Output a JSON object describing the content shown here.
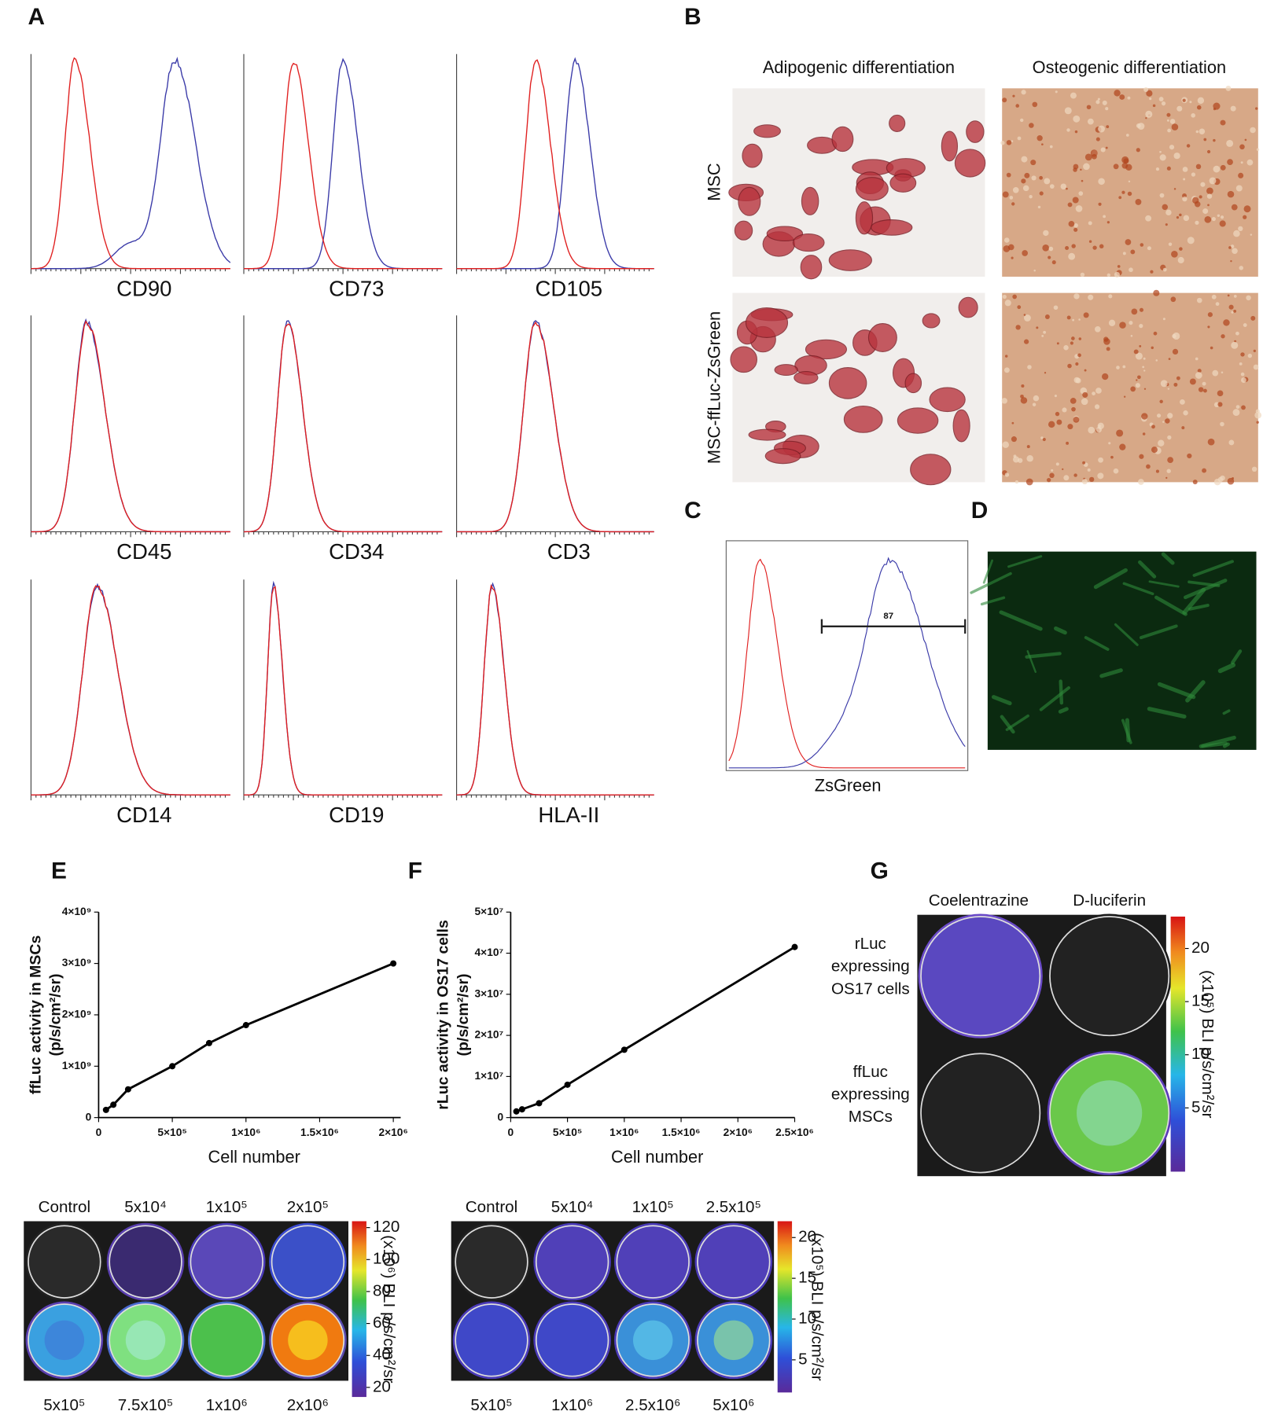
{
  "panel_labels": [
    "A",
    "B",
    "C",
    "D",
    "E",
    "F",
    "G"
  ],
  "flow_markers": {
    "labels": [
      "CD90",
      "CD73",
      "CD105",
      "CD45",
      "CD34",
      "CD3",
      "CD14",
      "CD19",
      "HLA-II"
    ]
  },
  "differentiation": {
    "columns": [
      "Adipogenic differentiation",
      "Osteogenic differentiation"
    ],
    "rows": [
      "MSC",
      "MSC-ffLuc-ZsGreen"
    ]
  },
  "zsgreen": {
    "x_label": "ZsGreen",
    "gate_label": 87
  },
  "chart_data": [
    {
      "type": "line",
      "y_label": "ffLuc activity in MSCs",
      "y_label_unit": "(p/s/cm²/sr)",
      "x_label": "Cell number",
      "x": [
        50000,
        100000,
        200000,
        500000,
        750000,
        1000000,
        2000000
      ],
      "series": [
        {
          "color": "#000000",
          "values": [
            150000000,
            250000000,
            550000000,
            1000000000,
            1450000000,
            1800000000,
            3000000000
          ]
        }
      ],
      "xlim": [
        0,
        2050000
      ],
      "ylim": [
        0,
        4000000000
      ],
      "xticks": [
        0,
        {
          "value": 500000,
          "label": "5×10⁵"
        },
        {
          "value": 1000000,
          "label": "1×10⁶"
        },
        {
          "value": 1500000,
          "label": "1.5×10⁶"
        },
        {
          "value": 2000000,
          "label": "2×10⁶"
        }
      ],
      "yticks": [
        0,
        {
          "value": 1000000000,
          "label": "1×10⁹"
        },
        {
          "value": 2000000000,
          "label": "2×10⁹"
        },
        {
          "value": 3000000000,
          "label": "3×10⁹"
        },
        {
          "value": 4000000000,
          "label": "4×10⁹"
        }
      ]
    },
    {
      "type": "line",
      "y_label": "rLuc activity in OS17 cells",
      "y_label_unit": "(p/s/cm²/sr)",
      "x_label": "Cell number",
      "x": [
        50000,
        100000,
        250000,
        500000,
        1000000,
        2500000
      ],
      "series": [
        {
          "color": "#000000",
          "values": [
            1500000,
            2000000,
            3500000,
            8000000,
            16500000,
            41500000
          ]
        }
      ],
      "xlim": [
        0,
        2500000
      ],
      "ylim": [
        0,
        50000000
      ],
      "xticks": [
        0,
        {
          "value": 500000,
          "label": "5×10⁵"
        },
        {
          "value": 1000000,
          "label": "1×10⁶"
        },
        {
          "value": 1500000,
          "label": "1.5×10⁶"
        },
        {
          "value": 2000000,
          "label": "2×10⁶"
        },
        {
          "value": 2500000,
          "label": "2.5×10⁶"
        }
      ],
      "yticks": [
        0,
        {
          "value": 10000000,
          "label": "1×10⁷"
        },
        {
          "value": 20000000,
          "label": "2×10⁷"
        },
        {
          "value": 30000000,
          "label": "3×10⁷"
        },
        {
          "value": 40000000,
          "label": "4×10⁷"
        },
        {
          "value": 50000000,
          "label": "5×10⁷"
        }
      ]
    }
  ],
  "plates": [
    {
      "top_labels": [
        "Control",
        "5x10⁴",
        "1x10⁵",
        "2x10⁵"
      ],
      "bottom_labels": [
        "5x10⁵",
        "7.5x10⁵",
        "1x10⁶",
        "2x10⁶"
      ],
      "colorbar": {
        "label": "(x10⁶) BLI p/s/cm²/sr",
        "range": [
          14,
          124
        ],
        "ticks": [
          20,
          40,
          60,
          80,
          100,
          120
        ]
      }
    },
    {
      "top_labels": [
        "Control",
        "5x10⁴",
        "1x10⁵",
        "2.5x10⁵"
      ],
      "bottom_labels": [
        "5x10⁵",
        "1x10⁶",
        "2.5x10⁶",
        "5x10⁶"
      ],
      "colorbar": {
        "label": "(x10⁵) BLI p/s/cm²/sr",
        "range": [
          1,
          22
        ],
        "ticks": [
          5,
          10,
          15,
          20
        ]
      }
    }
  ],
  "g_panel": {
    "columns": [
      "Coelentrazine",
      "D-luciferin"
    ],
    "rows": [
      [
        "rLuc",
        "expressing",
        "OS17 cells"
      ],
      [
        "ffLuc",
        "expressing",
        "MSCs"
      ]
    ],
    "colorbar": {
      "label": "(x10⁵) BLI p/s/cm²/sr",
      "range": [
        -1,
        23
      ],
      "ticks": [
        5,
        10,
        15,
        20
      ]
    }
  }
}
